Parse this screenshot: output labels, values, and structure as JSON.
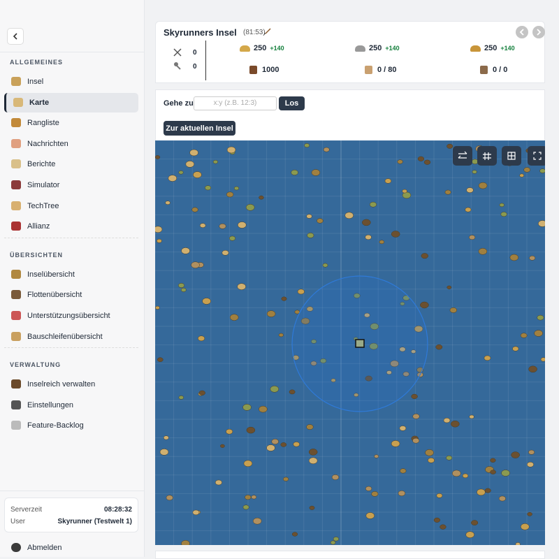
{
  "sidebar": {
    "sections": [
      {
        "title": "ALLGEMEINES",
        "items": [
          "Insel",
          "Karte",
          "Rangliste",
          "Nachrichten",
          "Berichte",
          "Simulator",
          "TechTree",
          "Allianz"
        ]
      },
      {
        "title": "ÜBERSICHTEN",
        "items": [
          "Inselübersicht",
          "Flottenübersicht",
          "Unterstützungsübersicht",
          "Bauschleifenübersicht"
        ]
      },
      {
        "title": "VERWALTUNG",
        "items": [
          "Inselreich verwalten",
          "Einstellungen",
          "Feature-Backlog"
        ]
      }
    ],
    "footer": {
      "server_label": "Serverzeit",
      "server_time": "08:28:32",
      "user_label": "User",
      "user": "Skyrunner (Testwelt 1)"
    },
    "logout": "Abmelden"
  },
  "header": {
    "title": "Skyrunners Insel",
    "coords": "(81:53)",
    "stats": [
      "0",
      "0"
    ],
    "resources": [
      {
        "value": "250",
        "rate": "+140"
      },
      {
        "value": "250",
        "rate": "+140"
      },
      {
        "value": "250",
        "rate": "+140"
      }
    ],
    "capacities": [
      "1000",
      "0 / 80",
      "0 / 0"
    ]
  },
  "controls": {
    "goto_label": "Gehe zu",
    "placeholder": "x:y (z.B. 12:3)",
    "go": "Los",
    "current": "Zur aktuellen Insel"
  }
}
